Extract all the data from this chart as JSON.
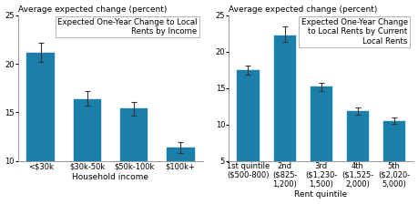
{
  "left": {
    "title": "Expected One-Year Change to Local\nRents by Income",
    "above_label": "Average expected change (percent)",
    "xlabel": "Household income",
    "categories": [
      "<$30k",
      "$30k-50k",
      "$50k-100k",
      "$100k+"
    ],
    "values": [
      21.1,
      16.4,
      15.4,
      11.4
    ],
    "yerr_low": [
      0.9,
      0.7,
      0.7,
      0.55
    ],
    "yerr_high": [
      1.1,
      0.8,
      0.7,
      0.55
    ],
    "ylim": [
      10,
      25
    ],
    "yticks": [
      10,
      15,
      20,
      25
    ]
  },
  "right": {
    "title": "Expected One-Year Change\nto Local Rents by Current\nLocal Rents",
    "above_label": "Average expected change (percent)",
    "xlabel": "Rent quintile",
    "categories": [
      "1st quintile\n($500-800)",
      "2nd\n($825-\n1,200)",
      "3rd\n($1,230-\n1,500)",
      "4th\n($1,525-\n2,000)",
      "5th\n($2,020-\n5,000)"
    ],
    "values": [
      17.5,
      22.2,
      15.2,
      11.9,
      10.5
    ],
    "yerr_low": [
      0.65,
      0.9,
      0.55,
      0.5,
      0.45
    ],
    "yerr_high": [
      0.65,
      1.3,
      0.55,
      0.5,
      0.45
    ],
    "ylim": [
      5,
      25
    ],
    "yticks": [
      5,
      10,
      15,
      20,
      25
    ]
  },
  "bar_color": "#1b7faa",
  "errorbar_color": "#333333",
  "title_fontsize": 6.2,
  "label_fontsize": 6.5,
  "tick_fontsize": 6.0,
  "above_label_fontsize": 6.5
}
